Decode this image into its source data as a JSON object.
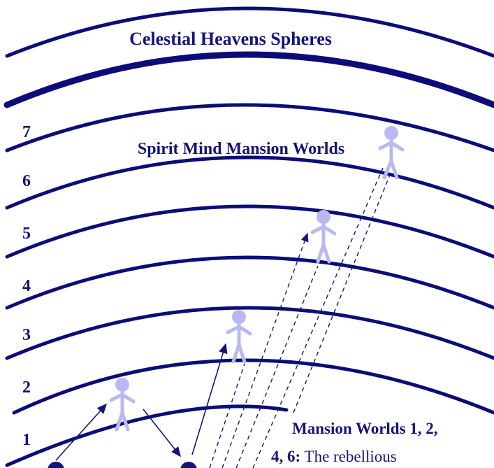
{
  "header": {
    "title": "Celestial Heavens Spheres",
    "subtitle": "Spirit Mind Mansion Worlds"
  },
  "levels": [
    "1",
    "2",
    "3",
    "4",
    "5",
    "6",
    "7"
  ],
  "caption": {
    "line1": "Mansion Worlds 1, 2,",
    "line2_bold": "4, 6:",
    "line2_rest": "The rebellious"
  }
}
